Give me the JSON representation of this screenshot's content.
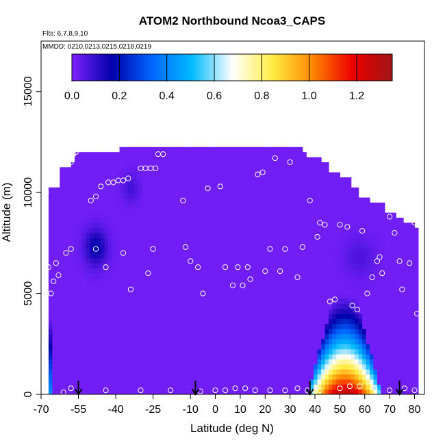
{
  "chart_data": {
    "type": "heatmap",
    "title": "ATOM2 Northbound Ncoa3_CAPS",
    "flights_label": "Flts: 6,7,8,9,10",
    "dates_label": "MMDD: 0210,0213,0215,0218,0219",
    "xlabel": "Latitude (deg N)",
    "ylabel": "Altitude (m)",
    "xlim": [
      -70,
      84
    ],
    "ylim": [
      0,
      17500
    ],
    "x_ticks": [
      -70,
      -55,
      -40,
      -25,
      -10,
      0,
      10,
      20,
      30,
      40,
      50,
      60,
      70,
      80
    ],
    "y_ticks": [
      0,
      5000,
      10000,
      15000
    ],
    "colorbar": {
      "range": [
        0,
        1.35
      ],
      "ticks": [
        0.0,
        0.2,
        0.4,
        0.6,
        0.8,
        1.0,
        1.2
      ],
      "tick_labels": [
        "0.0",
        "0.2",
        "0.4",
        "0.6",
        "0.8",
        "1.0",
        "1.2"
      ],
      "colors": [
        "#7f22ff",
        "#0000aa",
        "#0066ff",
        "#00bbff",
        "#ffffff",
        "#ffee44",
        "#ff8800",
        "#ee0000",
        "#a01515"
      ]
    },
    "background_value": 0.02,
    "domain_top_profile": {
      "lat": [
        -67,
        -62,
        -58,
        -56,
        -55,
        -40,
        -38,
        35,
        36,
        42,
        46,
        50,
        54,
        58,
        62,
        68,
        72,
        76,
        80
      ],
      "alt": [
        10200,
        11200,
        11500,
        11800,
        12000,
        12000,
        12200,
        12000,
        11600,
        11300,
        11000,
        10600,
        10200,
        9700,
        9400,
        9000,
        8700,
        8400,
        8200
      ]
    },
    "features": [
      {
        "name": "upper-trop blob",
        "lat": -48,
        "alt": 7300,
        "value": 0.15
      },
      {
        "name": "south pole column",
        "lat": -67,
        "alt": 1000,
        "value": 0.75
      },
      {
        "name": "boundary layer plume",
        "lat": 52,
        "alt": 400,
        "value": 1.3
      }
    ],
    "sample_points": [
      [
        -68,
        10000
      ],
      [
        -63,
        11500
      ],
      [
        -60,
        11900
      ],
      [
        -58,
        11500
      ],
      [
        -65,
        10700
      ],
      [
        -57,
        11900
      ],
      [
        -56,
        12000
      ],
      [
        -67,
        6300
      ],
      [
        -65,
        5600
      ],
      [
        -63,
        5900
      ],
      [
        -60,
        7000
      ],
      [
        -58,
        7200
      ],
      [
        -64,
        6500
      ],
      [
        -66,
        5000
      ],
      [
        -50,
        9600
      ],
      [
        -48,
        9800
      ],
      [
        -46,
        10300
      ],
      [
        -43,
        10500
      ],
      [
        -41,
        10500
      ],
      [
        -39,
        10600
      ],
      [
        -37,
        10600
      ],
      [
        -35,
        10700
      ],
      [
        -30,
        11200
      ],
      [
        -28,
        11200
      ],
      [
        -26,
        11200
      ],
      [
        -24,
        11200
      ],
      [
        -48,
        7200
      ],
      [
        -44,
        6300
      ],
      [
        -37,
        7000
      ],
      [
        -34,
        5200
      ],
      [
        -27,
        6000
      ],
      [
        -25,
        7200
      ],
      [
        -23,
        11900
      ],
      [
        -21,
        11900
      ],
      [
        -13,
        9600
      ],
      [
        -12,
        7300
      ],
      [
        -10,
        6600
      ],
      [
        -7,
        6300
      ],
      [
        -5,
        5000
      ],
      [
        -3,
        10200
      ],
      [
        2,
        10300
      ],
      [
        4,
        6300
      ],
      [
        7,
        5400
      ],
      [
        9,
        6300
      ],
      [
        11,
        5400
      ],
      [
        13,
        6300
      ],
      [
        14,
        5700
      ],
      [
        17,
        10900
      ],
      [
        19,
        11000
      ],
      [
        20,
        6100
      ],
      [
        22,
        7200
      ],
      [
        24,
        11700
      ],
      [
        26,
        6100
      ],
      [
        28,
        7200
      ],
      [
        30,
        11500
      ],
      [
        33,
        5800
      ],
      [
        35,
        7300
      ],
      [
        38,
        9600
      ],
      [
        41,
        7800
      ],
      [
        42,
        8500
      ],
      [
        44,
        8400
      ],
      [
        46,
        4600
      ],
      [
        48,
        4700
      ],
      [
        50,
        8400
      ],
      [
        53,
        8300
      ],
      [
        55,
        4400
      ],
      [
        57,
        4200
      ],
      [
        59,
        8100
      ],
      [
        61,
        5000
      ],
      [
        63,
        5800
      ],
      [
        65,
        6600
      ],
      [
        66,
        6800
      ],
      [
        67,
        6000
      ],
      [
        70,
        8800
      ],
      [
        72,
        8000
      ],
      [
        74,
        6600
      ],
      [
        75,
        5200
      ],
      [
        78,
        6500
      ],
      [
        80,
        8500
      ],
      [
        81,
        4000
      ],
      [
        -61,
        100
      ],
      [
        -58,
        300
      ],
      [
        -44,
        200
      ],
      [
        -30,
        200
      ],
      [
        -18,
        200
      ],
      [
        -6,
        150
      ],
      [
        0,
        200
      ],
      [
        4,
        200
      ],
      [
        8,
        300
      ],
      [
        12,
        300
      ],
      [
        16,
        200
      ],
      [
        22,
        200
      ],
      [
        28,
        200
      ],
      [
        33,
        300
      ],
      [
        37,
        200
      ],
      [
        42,
        200
      ],
      [
        50,
        300
      ],
      [
        54,
        400
      ],
      [
        58,
        400
      ],
      [
        64,
        300
      ],
      [
        70,
        200
      ],
      [
        76,
        300
      ],
      [
        80,
        200
      ]
    ],
    "flight_arrows_lat": [
      -55,
      -8,
      38,
      74
    ]
  }
}
